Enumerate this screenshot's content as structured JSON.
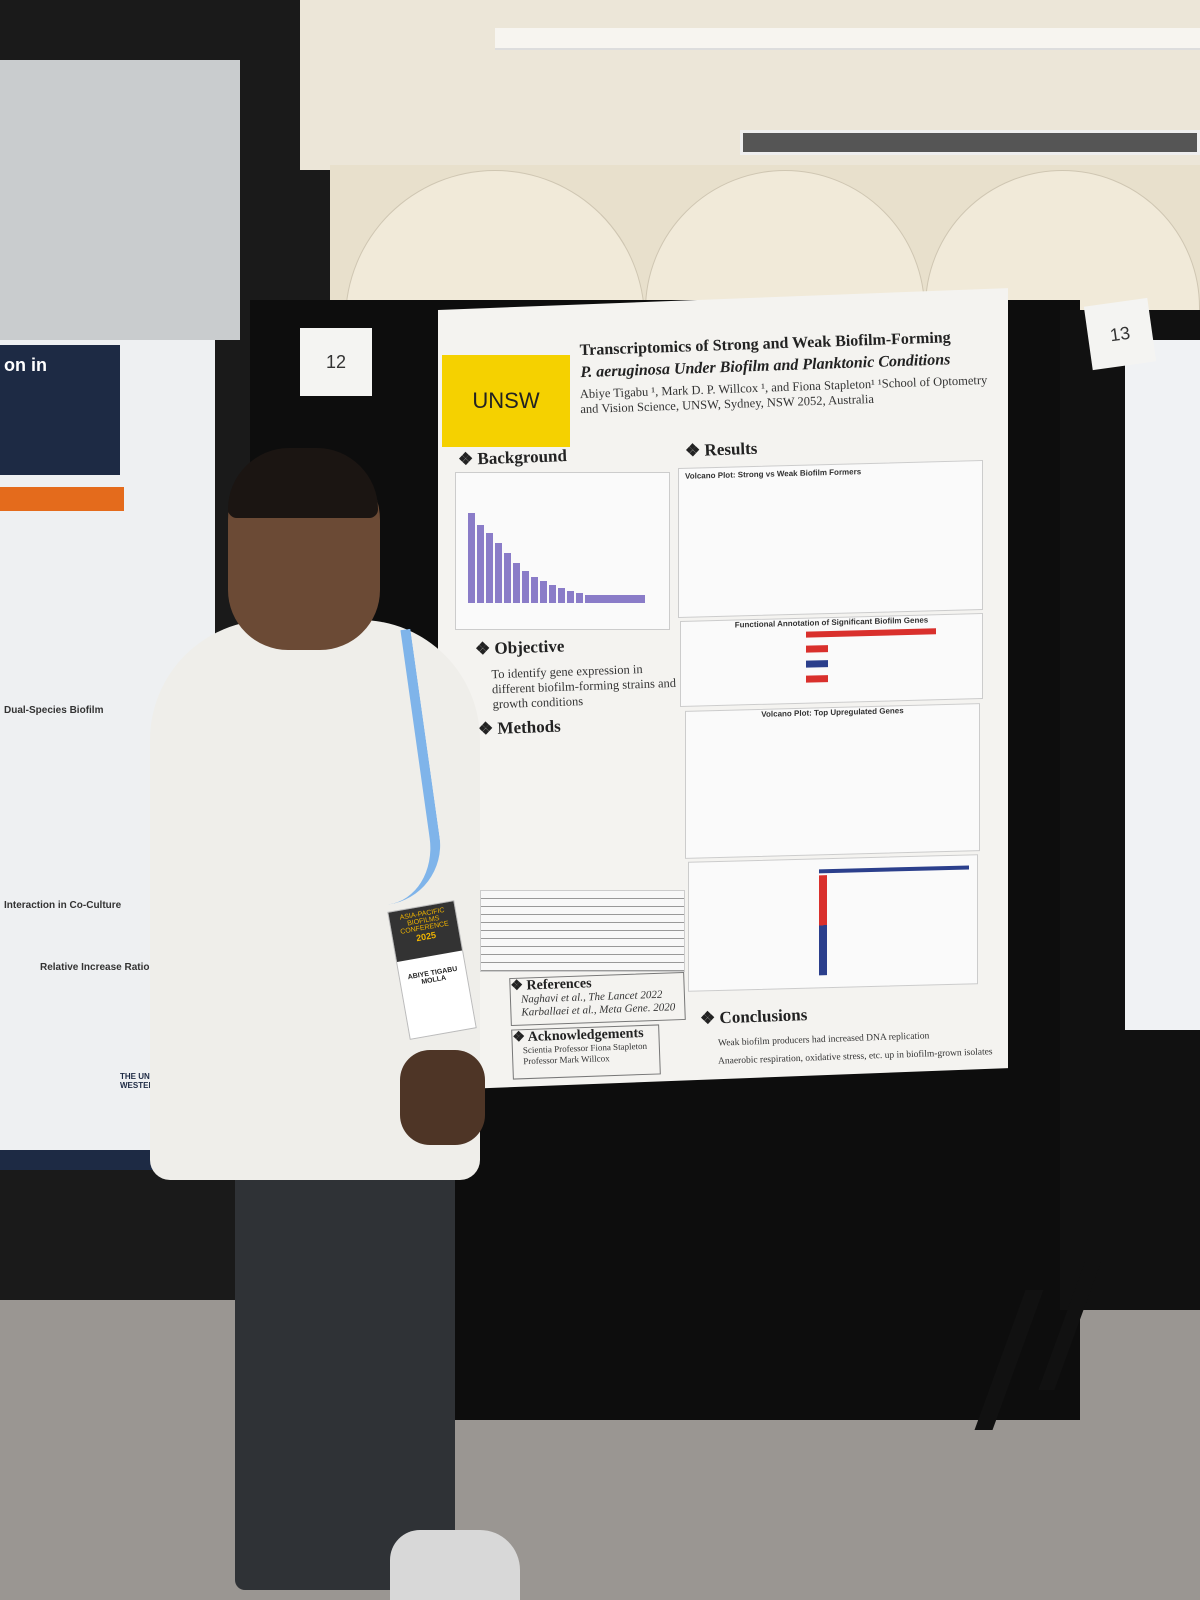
{
  "poster": {
    "university": "UNSW",
    "title_line1": "Transcriptomics of Strong and Weak Biofilm-Forming",
    "title_line2": "P. aeruginosa Under Biofilm and Planktonic Conditions",
    "authors": "Abiye Tigabu ¹, Mark D. P. Willcox ¹, and Fiona Stapleton¹ ¹School of Optometry and Vision Science, UNSW, Sydney, NSW 2052, Australia",
    "background_heading": "❖ Background",
    "results_heading": "❖ Results",
    "volcano_a": "Volcano Plot: Strong vs Weak Biofilm Formers",
    "functional_b": "Functional Annotation of Significant Biofilm Genes",
    "volcano_c": "Volcano Plot: Top Upregulated Genes",
    "objective_heading": "❖ Objective",
    "objective_text": "To identify gene expression in different biofilm-forming strains and growth conditions",
    "methods_heading": "❖ Methods",
    "references_heading": "❖ References",
    "references": [
      "Naghavi et al., The Lancet 2022",
      "Karballaei et al., Meta Gene. 2020"
    ],
    "ack_heading": "❖ Acknowledgements",
    "ack": [
      "Scientia Professor Fiona Stapleton",
      "Professor Mark Willcox"
    ],
    "conclusions_heading": "❖ Conclusions",
    "conclusions": [
      "Weak biofilm producers had increased DNA replication",
      "Anaerobic respiration, oxidative stress, etc. up in biofilm-grown isolates"
    ]
  },
  "board_numbers": {
    "center": "12",
    "right": "13"
  },
  "left_poster": {
    "title": "on in",
    "section1": "Dual-Species Biofilm",
    "section2": "Interaction in Co-Culture",
    "section3": "Relative Increase Ratio",
    "logo": "THE UNIVERSITY OF WESTERN AUSTRALIA"
  },
  "badge": {
    "event": "ASIA-PACIFIC BIOFILMS CONFERENCE",
    "year": "2025",
    "name": "ABIYE TIGABU MOLLA"
  },
  "colors": {
    "unsw_yellow": "#f5d100",
    "board": "#0d0d0d",
    "bar_red": "#d9302c",
    "bar_blue": "#2b3f8c",
    "bar_purple": "#8a7cc8"
  }
}
